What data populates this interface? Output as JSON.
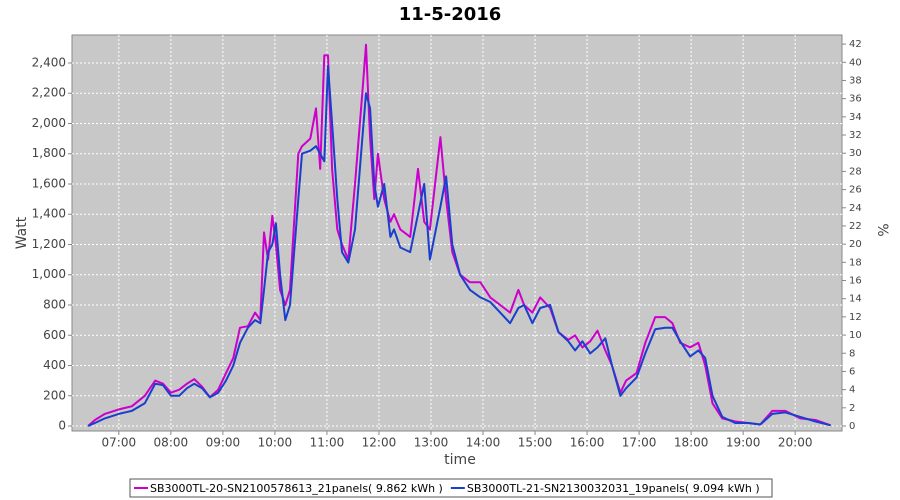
{
  "chart_data": {
    "type": "line",
    "title": "11-5-2016",
    "x_label": "time",
    "y_label": "Watt",
    "y2_label": "%",
    "x": [
      6.41,
      6.54,
      6.73,
      7.0,
      7.25,
      7.5,
      7.7,
      7.85,
      8.0,
      8.16,
      8.31,
      8.45,
      8.6,
      8.75,
      8.91,
      9.06,
      9.2,
      9.33,
      9.48,
      9.62,
      9.72,
      9.79,
      9.87,
      9.95,
      10.02,
      10.1,
      10.2,
      10.29,
      10.45,
      10.52,
      10.68,
      10.79,
      10.87,
      10.95,
      11.02,
      11.1,
      11.2,
      11.29,
      11.41,
      11.54,
      11.68,
      11.75,
      11.83,
      11.91,
      11.98,
      12.1,
      12.22,
      12.29,
      12.41,
      12.6,
      12.75,
      12.87,
      12.98,
      13.18,
      13.29,
      13.41,
      13.56,
      13.75,
      13.95,
      14.14,
      14.33,
      14.52,
      14.68,
      14.79,
      14.95,
      15.1,
      15.29,
      15.45,
      15.64,
      15.77,
      15.91,
      16.06,
      16.2,
      16.35,
      16.48,
      16.64,
      16.75,
      16.95,
      17.12,
      17.31,
      17.5,
      17.64,
      17.79,
      17.98,
      18.14,
      18.27,
      18.41,
      18.6,
      18.85,
      19.1,
      19.33,
      19.56,
      19.81,
      20.1,
      20.39,
      20.68
    ],
    "series": [
      {
        "name": "SB3000TL-20-SN2100578613_21panels( 9.862 kWh )",
        "color": "#cc00cc",
        "values": [
          0,
          40,
          80,
          110,
          130,
          200,
          300,
          280,
          220,
          240,
          280,
          310,
          260,
          190,
          240,
          350,
          450,
          650,
          660,
          750,
          700,
          1280,
          1100,
          1390,
          1200,
          900,
          800,
          900,
          1800,
          1850,
          1900,
          2100,
          1700,
          2450,
          2450,
          1700,
          1300,
          1200,
          1100,
          1600,
          2200,
          2520,
          1900,
          1500,
          1800,
          1500,
          1350,
          1400,
          1300,
          1250,
          1700,
          1350,
          1300,
          1910,
          1500,
          1150,
          1000,
          950,
          950,
          850,
          800,
          750,
          900,
          800,
          750,
          850,
          780,
          620,
          570,
          600,
          520,
          560,
          630,
          500,
          400,
          220,
          300,
          350,
          550,
          720,
          720,
          680,
          550,
          520,
          550,
          400,
          150,
          50,
          30,
          20,
          10,
          100,
          100,
          50,
          40,
          5
        ]
      },
      {
        "name": "SB3000TL-21-SN2130032031_19panels( 9.094 kWh )",
        "color": "#1a3fcc",
        "values": [
          0,
          20,
          50,
          80,
          100,
          150,
          280,
          270,
          200,
          200,
          250,
          280,
          250,
          190,
          220,
          300,
          400,
          550,
          650,
          700,
          680,
          900,
          1150,
          1200,
          1340,
          1000,
          700,
          800,
          1500,
          1800,
          1820,
          1850,
          1800,
          1750,
          2380,
          2000,
          1500,
          1150,
          1080,
          1300,
          1900,
          2200,
          2100,
          1600,
          1450,
          1600,
          1250,
          1300,
          1180,
          1150,
          1400,
          1600,
          1100,
          1450,
          1650,
          1200,
          1000,
          900,
          850,
          820,
          750,
          680,
          780,
          800,
          680,
          780,
          800,
          620,
          560,
          500,
          560,
          480,
          520,
          580,
          400,
          200,
          250,
          320,
          480,
          640,
          650,
          650,
          560,
          460,
          500,
          450,
          200,
          60,
          20,
          20,
          10,
          80,
          90,
          60,
          30,
          5
        ]
      }
    ],
    "xlim": [
      6.1,
      20.9
    ],
    "xticks": [
      {
        "value": 7,
        "label": "07:00"
      },
      {
        "value": 8,
        "label": "08:00"
      },
      {
        "value": 9,
        "label": "09:00"
      },
      {
        "value": 10,
        "label": "10:00"
      },
      {
        "value": 11,
        "label": "11:00"
      },
      {
        "value": 12,
        "label": "12:00"
      },
      {
        "value": 13,
        "label": "13:00"
      },
      {
        "value": 14,
        "label": "14:00"
      },
      {
        "value": 15,
        "label": "15:00"
      },
      {
        "value": 16,
        "label": "16:00"
      },
      {
        "value": 17,
        "label": "17:00"
      },
      {
        "value": 18,
        "label": "18:00"
      },
      {
        "value": 19,
        "label": "19:00"
      },
      {
        "value": 20,
        "label": "20:00"
      }
    ],
    "ylim": [
      -33,
      2585
    ],
    "yticks": [
      0,
      200,
      400,
      600,
      800,
      {
        "value": 1000,
        "label": "1,000"
      },
      {
        "value": 1200,
        "label": "1,200"
      },
      {
        "value": 1400,
        "label": "1,400"
      },
      {
        "value": 1600,
        "label": "1,600"
      },
      {
        "value": 1800,
        "label": "1,800"
      },
      {
        "value": 2000,
        "label": "2,000"
      },
      {
        "value": 2200,
        "label": "2,200"
      },
      {
        "value": 2400,
        "label": "2,400"
      }
    ],
    "y2lim": [
      -0.55,
      43
    ],
    "y2ticks": [
      0,
      2,
      4,
      6,
      8,
      10,
      12,
      14,
      16,
      18,
      20,
      22,
      24,
      26,
      28,
      30,
      32,
      34,
      36,
      38,
      40,
      42
    ],
    "grid": true
  }
}
